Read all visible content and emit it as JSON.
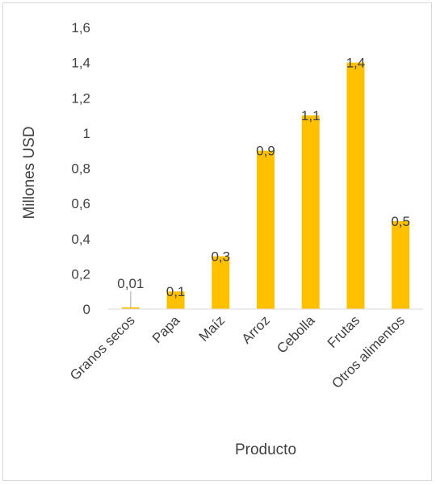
{
  "chart_data": {
    "type": "bar",
    "title": "",
    "xlabel": "Producto",
    "ylabel": "Millones USD",
    "categories": [
      "Granos secos",
      "Papa",
      "Maíz",
      "Arroz",
      "Cebolla",
      "Frutas",
      "Otros alimentos"
    ],
    "values": [
      0.01,
      0.1,
      0.3,
      0.9,
      1.1,
      1.4,
      0.5
    ],
    "data_labels": [
      "0,01",
      "0,1",
      "0,3",
      "0,9",
      "1,1",
      "1,4",
      "0,5"
    ],
    "ylim": [
      0,
      1.6
    ],
    "yticks": [
      0,
      0.2,
      0.4,
      0.6,
      0.8,
      1,
      1.2,
      1.4,
      1.6
    ],
    "ytick_labels": [
      "0",
      "0,2",
      "0,4",
      "0,6",
      "0,8",
      "1",
      "1,2",
      "1,4",
      "1,6"
    ],
    "grid": false,
    "legend": "none",
    "bar_color": "#FFC000",
    "axis_color": "#D9D9D9",
    "text_color": "#404040"
  }
}
